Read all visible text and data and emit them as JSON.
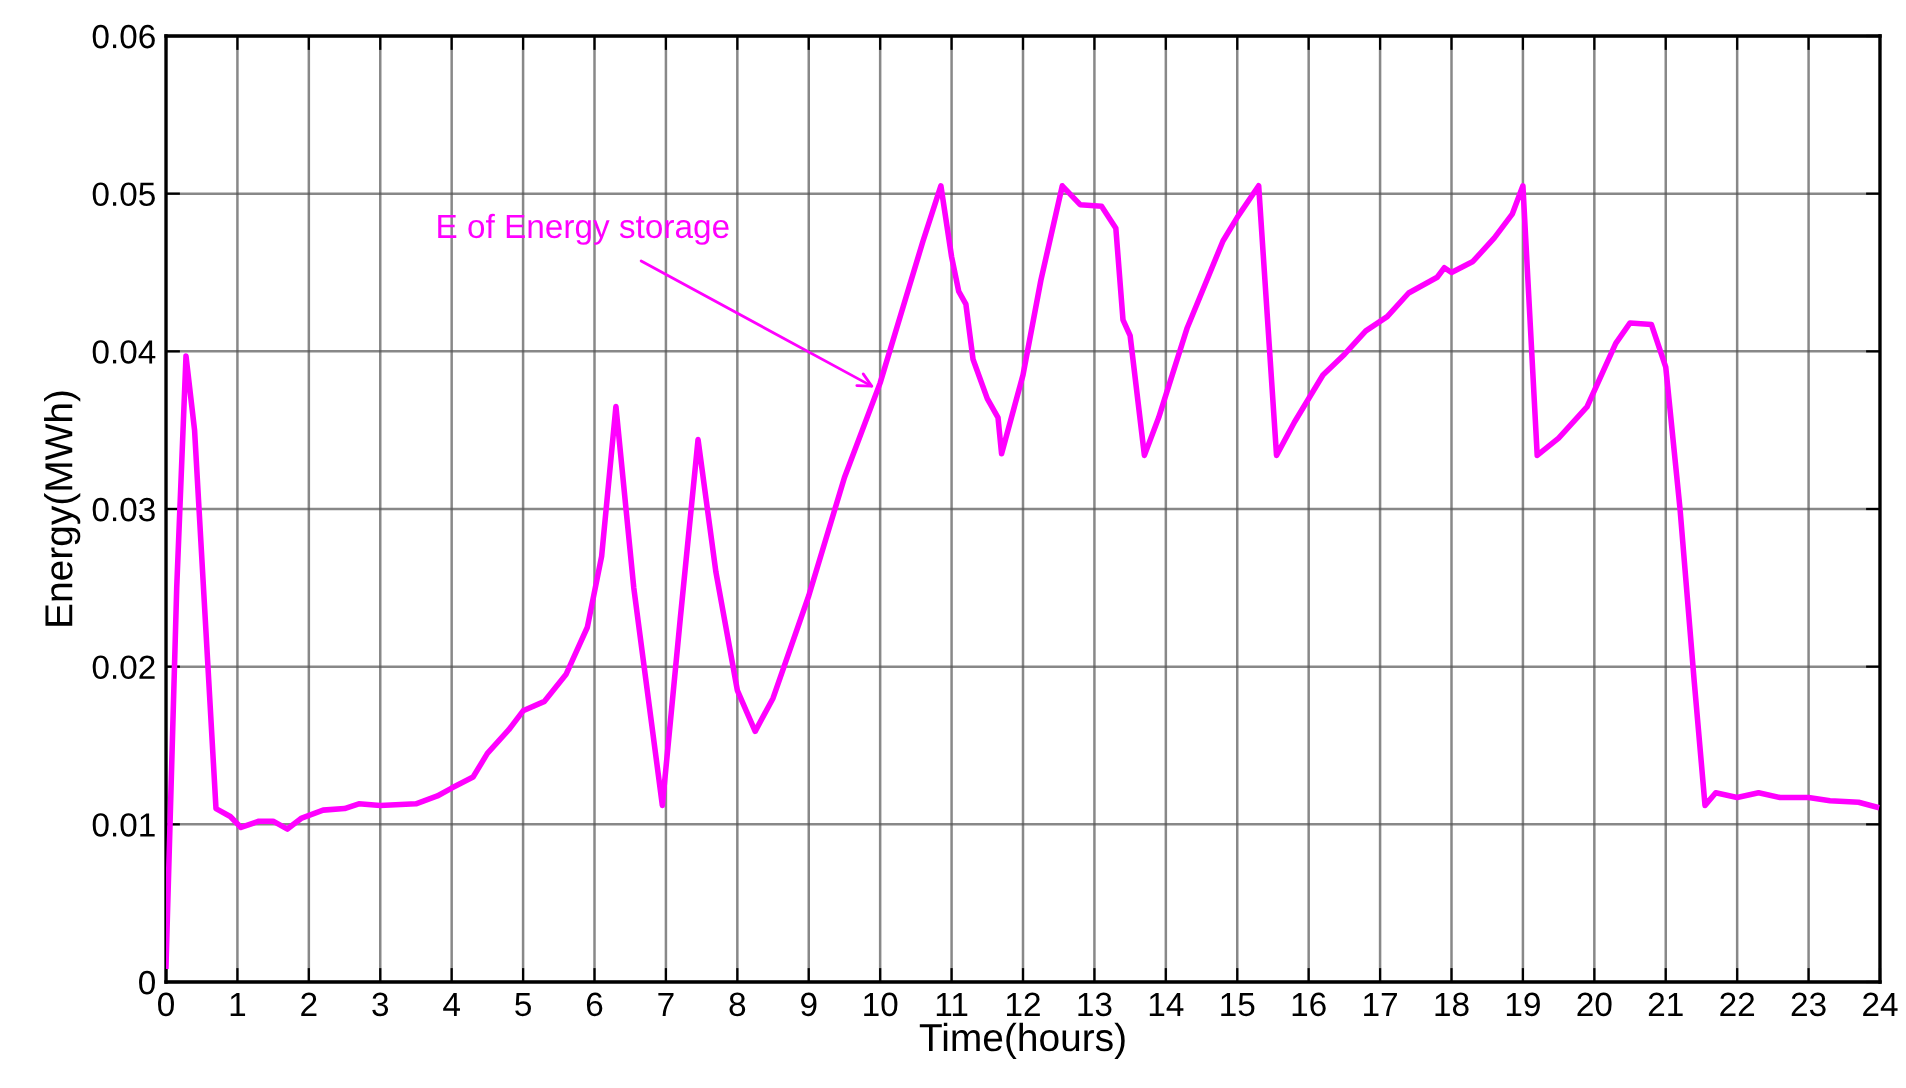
{
  "chart_data": {
    "type": "line",
    "xlabel": "Time(hours)",
    "ylabel": "Energy(MWh)",
    "xlim": [
      0,
      24
    ],
    "ylim": [
      0,
      0.06
    ],
    "xticks": [
      0,
      1,
      2,
      3,
      4,
      5,
      6,
      7,
      8,
      9,
      10,
      11,
      12,
      13,
      14,
      15,
      16,
      17,
      18,
      19,
      20,
      21,
      22,
      23,
      24
    ],
    "yticks": [
      0,
      0.01,
      0.02,
      0.03,
      0.04,
      0.05,
      0.06
    ],
    "grid": true,
    "legend": false,
    "marker": "none",
    "line_style": "solid",
    "annotations": [
      {
        "text": "E of Energy storage",
        "x": 9.92,
        "y": 0.0377
      }
    ],
    "series": [
      {
        "color": "#ff00ff",
        "x": [
          0,
          0.15,
          0.28,
          0.4,
          0.7,
          0.9,
          1.05,
          1.3,
          1.5,
          1.7,
          1.9,
          2.2,
          2.5,
          2.7,
          3.0,
          3.5,
          3.8,
          4.0,
          4.3,
          4.5,
          4.8,
          5.0,
          5.3,
          5.6,
          5.9,
          6.1,
          6.3,
          6.55,
          6.95,
          7.2,
          7.45,
          7.7,
          8.0,
          8.25,
          8.5,
          9.0,
          9.5,
          10.0,
          10.4,
          10.6,
          10.85,
          11.0,
          11.1,
          11.2,
          11.3,
          11.5,
          11.65,
          11.7,
          12.0,
          12.25,
          12.55,
          12.8,
          13.1,
          13.3,
          13.4,
          13.5,
          13.7,
          13.9,
          14.3,
          14.8,
          15.0,
          15.3,
          15.55,
          15.8,
          16.2,
          16.5,
          16.8,
          17.1,
          17.4,
          17.8,
          17.9,
          18.0,
          18.3,
          18.6,
          18.85,
          19.0,
          19.2,
          19.5,
          19.9,
          20.3,
          20.5,
          20.8,
          21.0,
          21.2,
          21.4,
          21.55,
          21.7,
          22.0,
          22.3,
          22.6,
          23.0,
          23.3,
          23.7,
          23.95
        ],
        "values": [
          0.001,
          0.025,
          0.0397,
          0.035,
          0.011,
          0.0105,
          0.0098,
          0.0102,
          0.0102,
          0.0097,
          0.0104,
          0.0109,
          0.011,
          0.0113,
          0.0112,
          0.0113,
          0.0118,
          0.0123,
          0.013,
          0.0145,
          0.016,
          0.0172,
          0.0178,
          0.0195,
          0.0225,
          0.027,
          0.0365,
          0.025,
          0.0112,
          0.023,
          0.0344,
          0.026,
          0.0185,
          0.0159,
          0.018,
          0.0245,
          0.032,
          0.038,
          0.044,
          0.047,
          0.0505,
          0.046,
          0.0438,
          0.043,
          0.0395,
          0.037,
          0.0358,
          0.0335,
          0.0385,
          0.0445,
          0.0505,
          0.0493,
          0.0492,
          0.0478,
          0.042,
          0.041,
          0.0334,
          0.0358,
          0.0415,
          0.047,
          0.0485,
          0.0505,
          0.0334,
          0.0355,
          0.0385,
          0.0398,
          0.0413,
          0.0422,
          0.0437,
          0.0447,
          0.0453,
          0.045,
          0.0457,
          0.0472,
          0.0487,
          0.0505,
          0.0334,
          0.0345,
          0.0365,
          0.0405,
          0.0418,
          0.0417,
          0.039,
          0.03,
          0.019,
          0.0112,
          0.012,
          0.0117,
          0.012,
          0.0117,
          0.0117,
          0.0115,
          0.0114,
          0.0111
        ]
      }
    ]
  }
}
